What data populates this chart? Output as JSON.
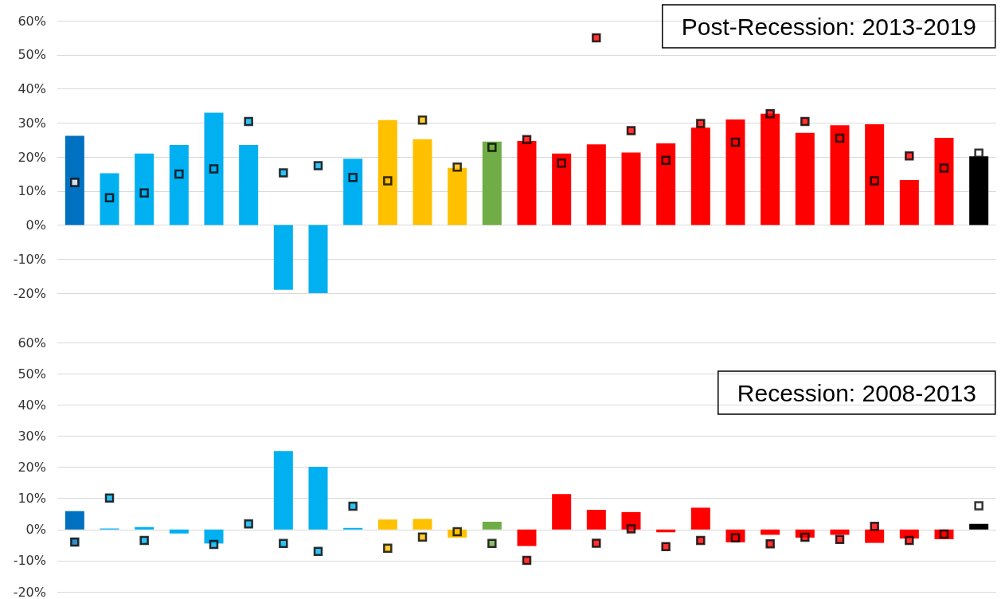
{
  "chart_data": [
    {
      "type": "bar",
      "title": "Post-Recession: 2013-2019",
      "categories": [
        null,
        null,
        null,
        null,
        null,
        null,
        null,
        null,
        null,
        null,
        null,
        null,
        null,
        null,
        null,
        null,
        null,
        null,
        null,
        null,
        null,
        null,
        null,
        null,
        null,
        null,
        null
      ],
      "series": [
        {
          "colors": [
            "#0070c0",
            "#00b0f0",
            "#00b0f0",
            "#00b0f0",
            "#00b0f0",
            "#00b0f0",
            "#00b0f0",
            "#00b0f0",
            "#00b0f0",
            "#ffc000",
            "#ffc000",
            "#ffc000",
            "#70ad47",
            "#ff0000",
            "#ff0000",
            "#ff0000",
            "#ff0000",
            "#ff0000",
            "#ff0000",
            "#ff0000",
            "#ff0000",
            "#ff0000",
            "#ff0000",
            "#ff0000",
            "#ff0000",
            "#ff0000",
            "#000000"
          ],
          "values": [
            26.2,
            15.2,
            21.0,
            23.5,
            33.0,
            23.5,
            -19.0,
            -20.0,
            19.5,
            30.8,
            25.2,
            16.8,
            24.5,
            24.7,
            21.0,
            23.7,
            21.3,
            24.0,
            28.6,
            31.0,
            32.7,
            27.1,
            29.3,
            29.6,
            13.2,
            25.6,
            20.2
          ]
        },
        {
          "type": "scatter",
          "marker": "square",
          "colors": [
            "#ffffff",
            "#00b0f0",
            "#00b0f0",
            "#00b0f0",
            "#00b0f0",
            "#00b0f0",
            "#00b0f0",
            "#00b0f0",
            "#00b0f0",
            "#ffc000",
            "#ffc000",
            "#ffc000",
            "#70ad47",
            "#ff0000",
            "#ff0000",
            "#ff0000",
            "#ff0000",
            "#ff0000",
            "#ff0000",
            "#ff0000",
            "#ff0000",
            "#ff0000",
            "#ff0000",
            "#ff0000",
            "#ff0000",
            "#ff0000",
            "#ffffff"
          ],
          "values": [
            12.5,
            8.0,
            9.4,
            15.0,
            16.5,
            30.4,
            15.3,
            17.4,
            14.0,
            13.0,
            30.8,
            17.0,
            22.8,
            25.1,
            18.2,
            55,
            27.7,
            19.0,
            29.8,
            24.3,
            32.7,
            30.4,
            25.5,
            13.0,
            20.3,
            16.7,
            21.1
          ]
        }
      ],
      "ylim": [
        -20,
        60
      ],
      "yticks": [
        {
          "value": -20,
          "label": "-20%"
        },
        {
          "value": -10,
          "label": "-10%"
        },
        {
          "value": 0,
          "label": "0%"
        },
        {
          "value": 10,
          "label": "10%"
        },
        {
          "value": 20,
          "label": "20%"
        },
        {
          "value": 30,
          "label": "30%"
        },
        {
          "value": 40,
          "label": "40%"
        },
        {
          "value": 50,
          "label": "50%"
        },
        {
          "value": 60,
          "label": "60%"
        }
      ],
      "grid": "y",
      "tick_labels": "y"
    },
    {
      "type": "bar",
      "title": "Recession: 2008-2013",
      "categories": [
        null,
        null,
        null,
        null,
        null,
        null,
        null,
        null,
        null,
        null,
        null,
        null,
        null,
        null,
        null,
        null,
        null,
        null,
        null,
        null,
        null,
        null,
        null,
        null,
        null,
        null,
        null
      ],
      "series": [
        {
          "colors": [
            "#0070c0",
            "#00b0f0",
            "#00b0f0",
            "#00b0f0",
            "#00b0f0",
            "#00b0f0",
            "#00b0f0",
            "#00b0f0",
            "#00b0f0",
            "#ffc000",
            "#ffc000",
            "#ffc000",
            "#70ad47",
            "#ff0000",
            "#ff0000",
            "#ff0000",
            "#ff0000",
            "#ff0000",
            "#ff0000",
            "#ff0000",
            "#ff0000",
            "#ff0000",
            "#ff0000",
            "#ff0000",
            "#ff0000",
            "#ff0000",
            "#000000"
          ],
          "values": [
            5.9,
            0.3,
            0.8,
            -1.3,
            -4.5,
            null,
            25.2,
            20.1,
            0.5,
            3.2,
            3.4,
            -2.6,
            2.5,
            -5.3,
            11.4,
            6.3,
            5.6,
            -0.9,
            7.0,
            -4.1,
            -1.7,
            -2.6,
            -1.7,
            -4.3,
            -2.9,
            -3.1,
            1.8
          ]
        },
        {
          "type": "scatter",
          "marker": "square",
          "colors": [
            "#0070c0",
            "#00b0f0",
            "#00b0f0",
            "#00b0f0",
            "#00b0f0",
            "#00b0f0",
            "#00b0f0",
            "#00b0f0",
            "#00b0f0",
            "#ffc000",
            "#ffc000",
            "#ffc000",
            "#70ad47",
            "#ff0000",
            "#ff0000",
            "#ff0000",
            "#ff0000",
            "#ff0000",
            "#ff0000",
            "#ff0000",
            "#ff0000",
            "#ff0000",
            "#ff0000",
            "#ff0000",
            "#ff0000",
            "#ff0000",
            "#ffffff"
          ],
          "values": [
            -4.0,
            10.1,
            -3.5,
            null,
            -4.8,
            1.8,
            -4.5,
            -7.0,
            7.5,
            -6.0,
            -2.4,
            -0.7,
            -4.5,
            -9.9,
            null,
            -4.4,
            0.2,
            -5.5,
            -3.5,
            -2.7,
            -4.6,
            -2.5,
            -3.2,
            1.0,
            -3.5,
            -1.5,
            7.6
          ]
        }
      ],
      "ylim": [
        -20,
        60
      ],
      "yticks": [
        {
          "value": -20,
          "label": "-20%"
        },
        {
          "value": -10,
          "label": "-10%"
        },
        {
          "value": 0,
          "label": "0%"
        },
        {
          "value": 10,
          "label": "10%"
        },
        {
          "value": 20,
          "label": "20%"
        },
        {
          "value": 30,
          "label": "30%"
        },
        {
          "value": 40,
          "label": "40%"
        },
        {
          "value": 50,
          "label": "50%"
        },
        {
          "value": 60,
          "label": "60%"
        }
      ],
      "grid": "y",
      "tick_labels": "y"
    }
  ]
}
